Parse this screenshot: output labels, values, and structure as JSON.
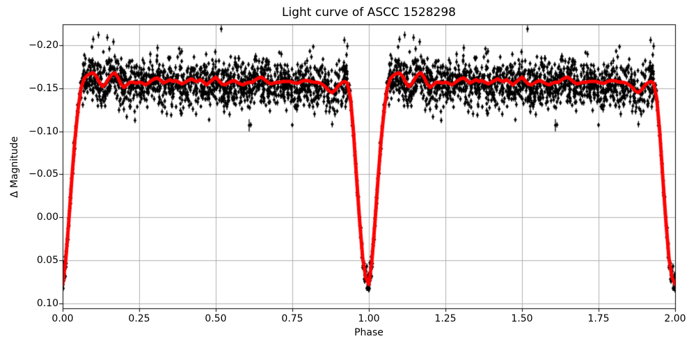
{
  "figure": {
    "background": "#ffffff",
    "frame_color": "#000000"
  },
  "chart_data": {
    "type": "scatter",
    "title": "Light curve of ASCC 1528298",
    "xlabel": "Phase",
    "ylabel": "Δ Magnitude",
    "xlim": [
      0,
      2
    ],
    "ylim": [
      0.1057,
      -0.2243
    ],
    "y_axis_inverted": true,
    "grid": true,
    "grid_color": "#b0b0b0",
    "x_ticks": {
      "values": [
        0,
        0.25,
        0.5,
        0.75,
        1.0,
        1.25,
        1.5,
        1.75,
        2.0
      ],
      "labels": [
        "0.00",
        "0.25",
        "0.50",
        "0.75",
        "1.00",
        "1.25",
        "1.50",
        "1.75",
        "2.00"
      ]
    },
    "y_ticks": {
      "values": [
        -0.2,
        -0.15,
        -0.1,
        -0.05,
        0.0,
        0.05,
        0.1
      ],
      "labels": [
        "−0.20",
        "−0.15",
        "−0.10",
        "−0.05",
        "0.00",
        "0.05",
        "0.10"
      ]
    },
    "series": [
      {
        "name": "observations",
        "kind": "errorbar-scatter",
        "marker": "diamond",
        "color": "#000000"
      },
      {
        "name": "smoothed model",
        "kind": "line",
        "color": "#ff0000",
        "linewidth": 5
      }
    ],
    "model_curve": {
      "comment": "red smoothed curve, one cycle phase 0..1 step 0.01, repeated for phase 1..2; magnitude values",
      "phase_step": 0.01,
      "cycles": 2,
      "mag": [
        0.078,
        0.05,
        0.005,
        -0.045,
        -0.09,
        -0.125,
        -0.15,
        -0.161,
        -0.165,
        -0.167,
        -0.168,
        -0.164,
        -0.157,
        -0.152,
        -0.155,
        -0.161,
        -0.166,
        -0.168,
        -0.163,
        -0.155,
        -0.151,
        -0.154,
        -0.157,
        -0.157,
        -0.156,
        -0.157,
        -0.156,
        -0.154,
        -0.156,
        -0.159,
        -0.161,
        -0.162,
        -0.159,
        -0.156,
        -0.158,
        -0.16,
        -0.158,
        -0.159,
        -0.157,
        -0.155,
        -0.157,
        -0.159,
        -0.161,
        -0.159,
        -0.158,
        -0.16,
        -0.157,
        -0.154,
        -0.157,
        -0.16,
        -0.163,
        -0.159,
        -0.155,
        -0.154,
        -0.156,
        -0.158,
        -0.159,
        -0.157,
        -0.155,
        -0.154,
        -0.156,
        -0.157,
        -0.157,
        -0.16,
        -0.162,
        -0.163,
        -0.16,
        -0.157,
        -0.155,
        -0.156,
        -0.157,
        -0.157,
        -0.158,
        -0.158,
        -0.158,
        -0.157,
        -0.156,
        -0.156,
        -0.158,
        -0.159,
        -0.159,
        -0.158,
        -0.157,
        -0.157,
        -0.156,
        -0.154,
        -0.151,
        -0.147,
        -0.145,
        -0.148,
        -0.153,
        -0.156,
        -0.158,
        -0.156,
        -0.138,
        -0.098,
        -0.045,
        0.005,
        0.048,
        0.07,
        0.078
      ]
    },
    "scatter": {
      "comment": "dense photometric points scattered about model curve; identical cloud repeated at phase+1",
      "n_per_cycle": 1700,
      "seed": 7,
      "sigma_plateau": 0.0135,
      "sigma_eclipse": 0.0065,
      "plateau_offset": 0.002,
      "err_base": 0.0024,
      "err_spread": 0.0014,
      "mag_clamp": [
        -0.2215,
        0.104
      ],
      "eclipse_halfwidth": 0.065,
      "outliers": [
        {
          "phase": 0.518,
          "mag": -0.219,
          "err": 0.004
        },
        {
          "phase": 0.609,
          "mag": -0.107,
          "err": 0.007
        },
        {
          "phase": 0.1,
          "mag": -0.207,
          "err": 0.004
        },
        {
          "phase": 0.117,
          "mag": -0.212,
          "err": 0.004
        },
        {
          "phase": 0.146,
          "mag": -0.209,
          "err": 0.004
        },
        {
          "phase": 0.166,
          "mag": -0.204,
          "err": 0.004
        },
        {
          "phase": 0.31,
          "mag": -0.197,
          "err": 0.004
        },
        {
          "phase": 0.92,
          "mag": -0.206,
          "err": 0.004
        },
        {
          "phase": 0.93,
          "mag": -0.199,
          "err": 0.004
        }
      ]
    }
  }
}
